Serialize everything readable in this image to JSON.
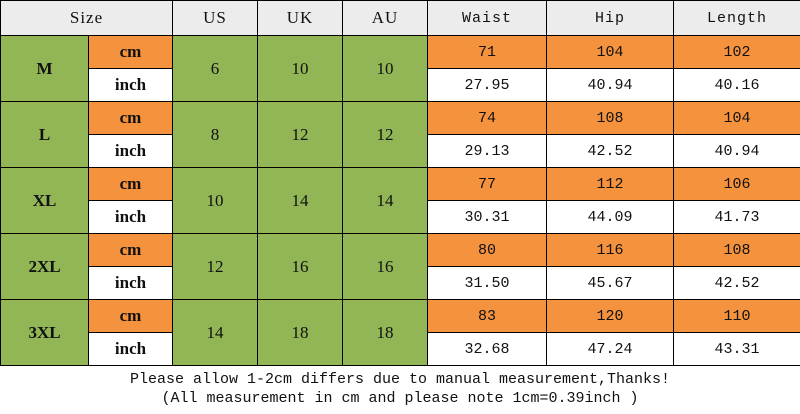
{
  "header": [
    "Size",
    "US",
    "UK",
    "AU",
    "Waist",
    "Hip",
    "Length"
  ],
  "rows": [
    {
      "size": "M",
      "us": "6",
      "uk": "10",
      "au": "10",
      "cm": {
        "unit": "cm",
        "values": [
          "71",
          "104",
          "102"
        ]
      },
      "inch": {
        "unit": "inch",
        "values": [
          "27.95",
          "40.94",
          "40.16"
        ]
      }
    },
    {
      "size": "L",
      "us": "8",
      "uk": "12",
      "au": "12",
      "cm": {
        "unit": "cm",
        "values": [
          "74",
          "108",
          "104"
        ]
      },
      "inch": {
        "unit": "inch",
        "values": [
          "29.13",
          "42.52",
          "40.94"
        ]
      }
    },
    {
      "size": "XL",
      "us": "10",
      "uk": "14",
      "au": "14",
      "cm": {
        "unit": "cm",
        "values": [
          "77",
          "112",
          "106"
        ]
      },
      "inch": {
        "unit": "inch",
        "values": [
          "30.31",
          "44.09",
          "41.73"
        ]
      }
    },
    {
      "size": "2XL",
      "us": "12",
      "uk": "16",
      "au": "16",
      "cm": {
        "unit": "cm",
        "values": [
          "80",
          "116",
          "108"
        ]
      },
      "inch": {
        "unit": "inch",
        "values": [
          "31.50",
          "45.67",
          "42.52"
        ]
      }
    },
    {
      "size": "3XL",
      "us": "14",
      "uk": "18",
      "au": "18",
      "cm": {
        "unit": "cm",
        "values": [
          "83",
          "120",
          "110"
        ]
      },
      "inch": {
        "unit": "inch",
        "values": [
          "32.68",
          "47.24",
          "43.31"
        ]
      }
    }
  ],
  "notes": [
    "Please allow 1-2cm differs due to manual measurement,Thanks!",
    "(All measurement in cm and please note 1cm=0.39inch )"
  ]
}
